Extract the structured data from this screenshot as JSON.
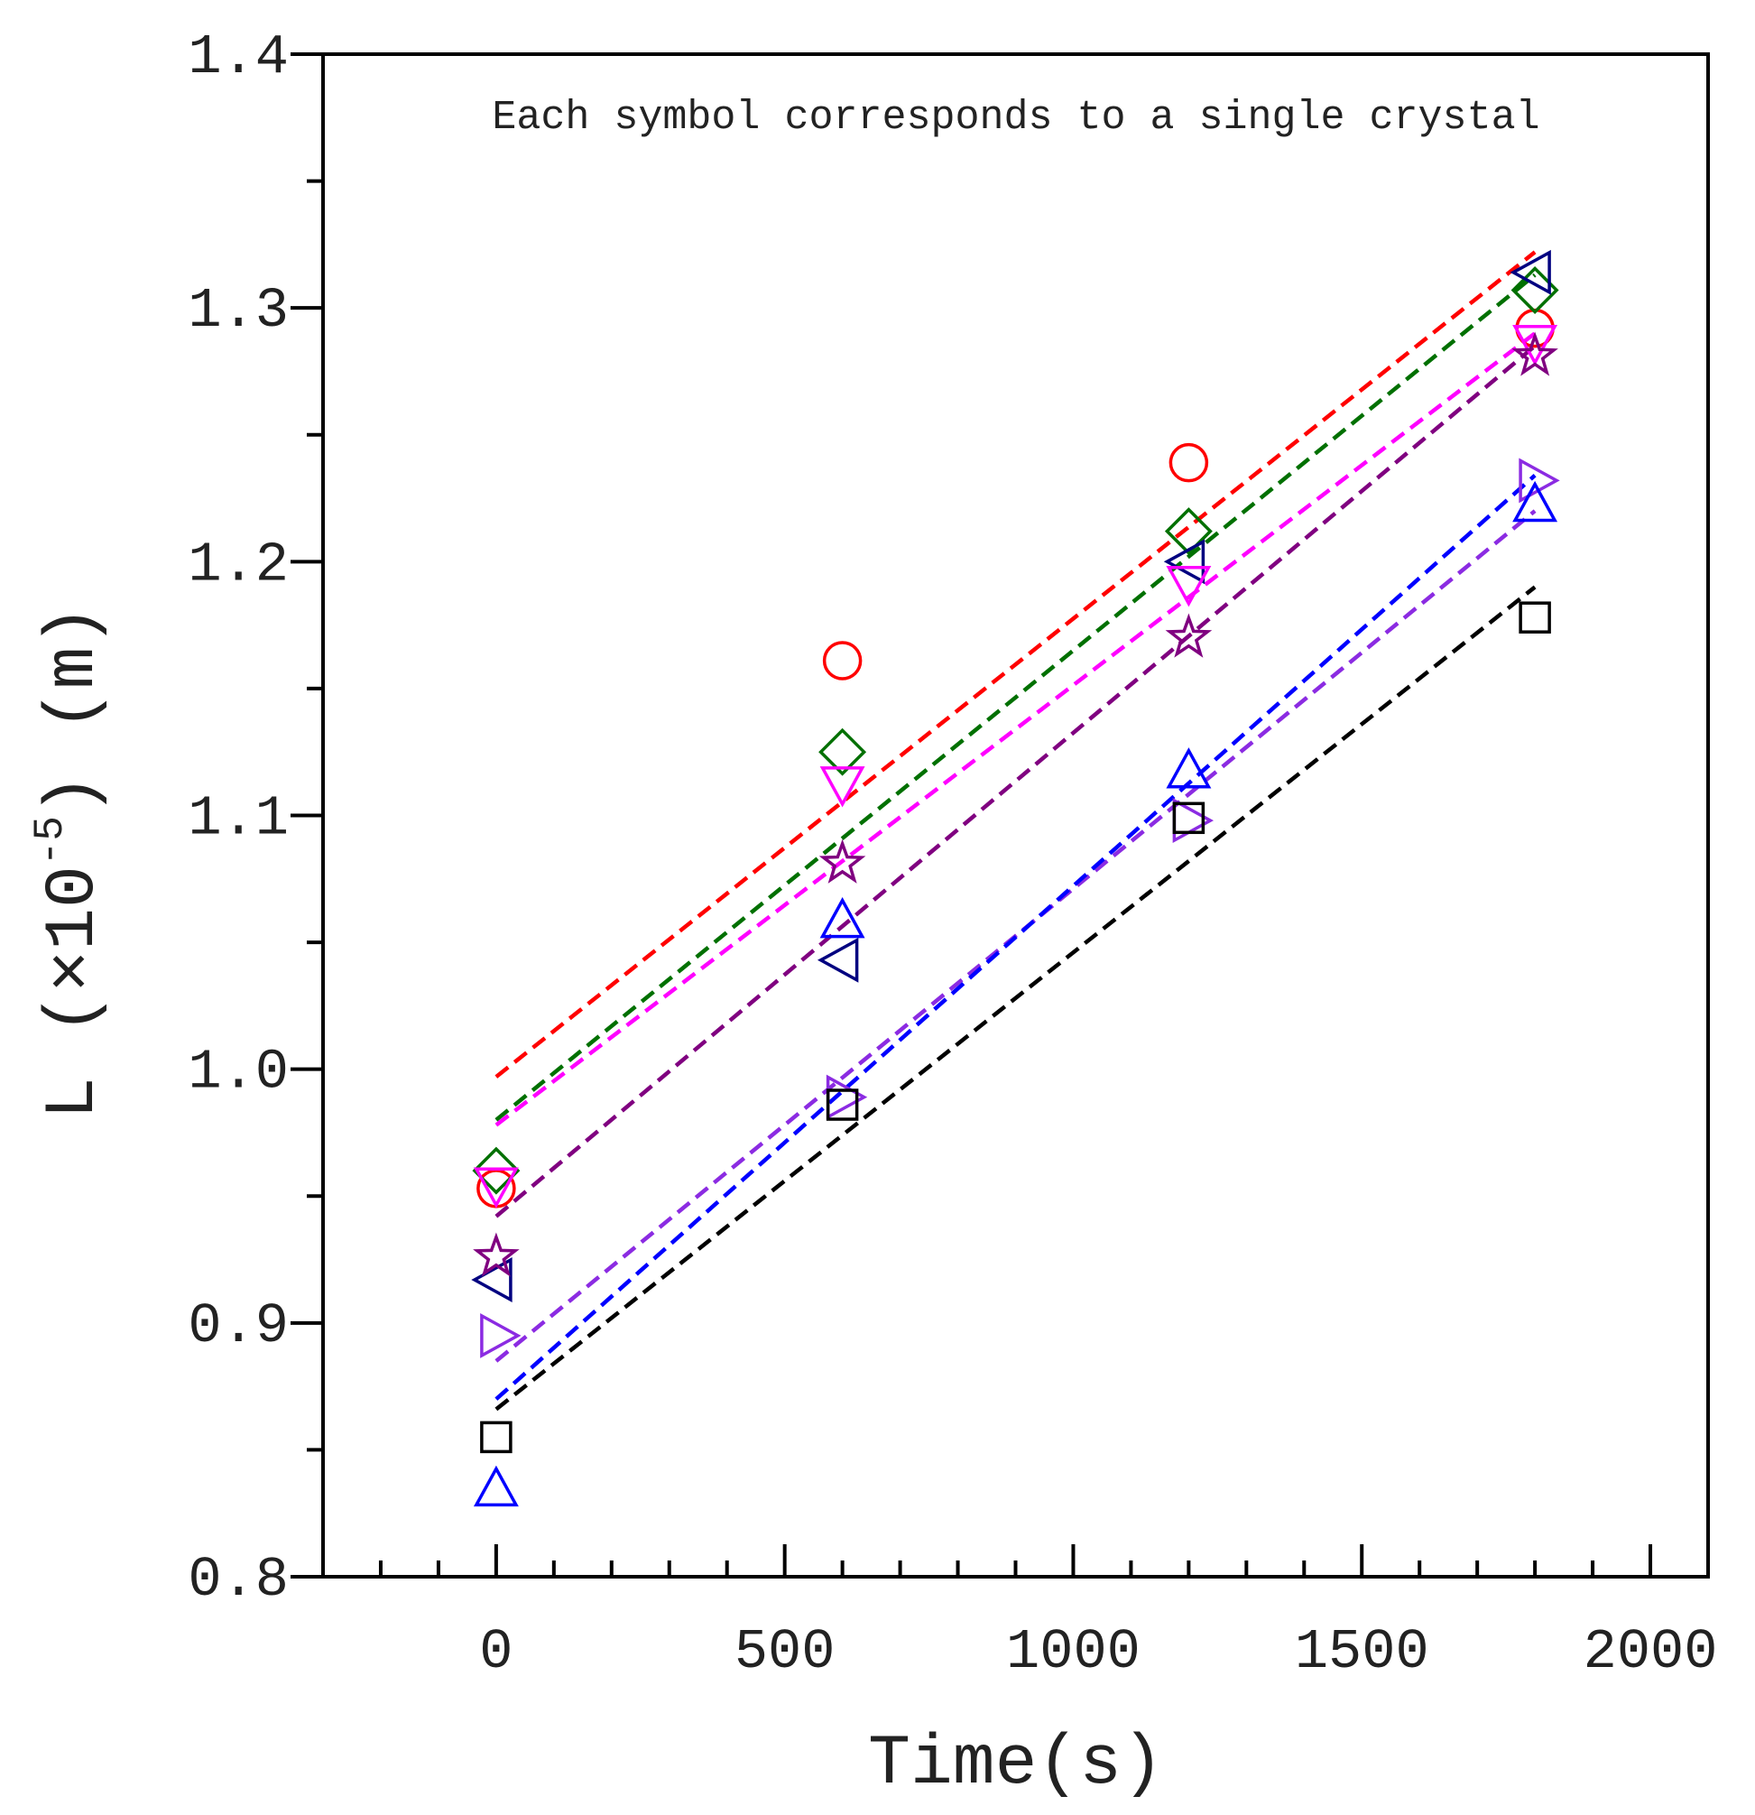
{
  "chart_data": {
    "type": "scatter",
    "title": "",
    "xlabel": "Time(s)",
    "ylabel_parts": {
      "prefix": "L (×10",
      "exponent": "-5",
      "suffix": ") (m)"
    },
    "annotation": "Each symbol corresponds to a single crystal",
    "xlim": [
      -300,
      2100
    ],
    "ylim": [
      0.8,
      1.4
    ],
    "x_ticks": [
      0,
      500,
      1000,
      1500,
      2000
    ],
    "x_tick_labels": [
      "0",
      "500",
      "1000",
      "1500",
      "2000"
    ],
    "y_ticks": [
      0.8,
      0.9,
      1.0,
      1.1,
      1.2,
      1.3,
      1.4
    ],
    "y_tick_labels": [
      "0.8",
      "0.9",
      "1.0",
      "1.1",
      "1.2",
      "1.3",
      "1.4"
    ],
    "grid": false,
    "legend": "none",
    "x": [
      0,
      600,
      1200,
      1800
    ],
    "series": [
      {
        "name": "crystal-circle",
        "marker": "circle",
        "color": "#ff0000",
        "values": [
          0.953,
          1.161,
          1.239,
          1.292
        ],
        "fit": [
          0.997,
          1.322
        ]
      },
      {
        "name": "crystal-diamond",
        "marker": "diamond",
        "color": "#007000",
        "values": [
          0.96,
          1.125,
          1.212,
          1.307
        ],
        "fit": [
          0.98,
          1.313
        ]
      },
      {
        "name": "crystal-triangle-left",
        "marker": "triangle-left",
        "color": "#000080",
        "values": [
          0.917,
          1.043,
          1.2,
          1.314
        ],
        "fit": null
      },
      {
        "name": "crystal-triangle-down",
        "marker": "triangle-down",
        "color": "#ff00ff",
        "values": [
          0.955,
          1.113,
          1.192,
          1.287
        ],
        "fit": [
          0.978,
          1.29
        ]
      },
      {
        "name": "crystal-star",
        "marker": "star",
        "color": "#800080",
        "values": [
          0.926,
          1.081,
          1.17,
          1.281
        ],
        "fit": [
          0.942,
          1.285
        ]
      },
      {
        "name": "crystal-triangle-right",
        "marker": "triangle-right",
        "color": "#8b2be2",
        "values": [
          0.895,
          0.989,
          1.098,
          1.232
        ],
        "fit": [
          0.885,
          1.22
        ]
      },
      {
        "name": "crystal-triangle-up",
        "marker": "triangle-up",
        "color": "#0000ff",
        "values": [
          0.834,
          1.058,
          1.117,
          1.222
        ],
        "fit": [
          0.87,
          1.234
        ]
      },
      {
        "name": "crystal-square",
        "marker": "square",
        "color": "#000000",
        "values": [
          0.855,
          0.986,
          1.099,
          1.178
        ],
        "fit": [
          0.866,
          1.19
        ]
      }
    ]
  }
}
